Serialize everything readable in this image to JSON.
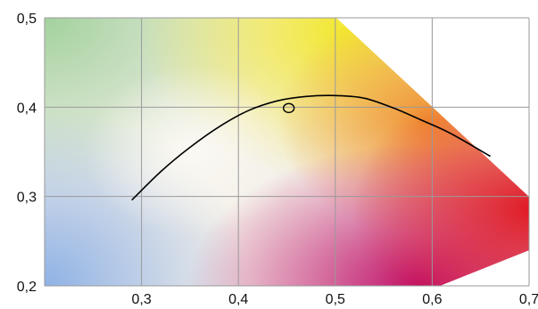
{
  "chart_data": {
    "type": "line",
    "title": "",
    "xlabel": "",
    "ylabel": "",
    "xlim": [
      0.2,
      0.7
    ],
    "ylim": [
      0.2,
      0.5
    ],
    "grid": true,
    "x_ticks": [
      "0,3",
      "0,4",
      "0,5",
      "0,6",
      "0,7"
    ],
    "y_ticks": [
      "0,5",
      "0,4",
      "0,3",
      "0,2"
    ],
    "series": [
      {
        "x": [
          0.29,
          0.32,
          0.35,
          0.38,
          0.41,
          0.44,
          0.47,
          0.5,
          0.53,
          0.56,
          0.59,
          0.62,
          0.66
        ],
        "y": [
          0.296,
          0.328,
          0.355,
          0.378,
          0.396,
          0.407,
          0.412,
          0.413,
          0.41,
          0.399,
          0.385,
          0.37,
          0.345
        ]
      }
    ],
    "marker": {
      "x": 0.452,
      "y": 0.399
    },
    "colors": {
      "green": "#9fd09a",
      "yellow": "#f2e830",
      "orange": "#f08a2a",
      "red": "#e01a24",
      "magenta": "#c0106a",
      "blue": "#8fb2e6",
      "white": "#fbfaf4",
      "line": "#000000",
      "grid": "#9a9a9a"
    }
  }
}
